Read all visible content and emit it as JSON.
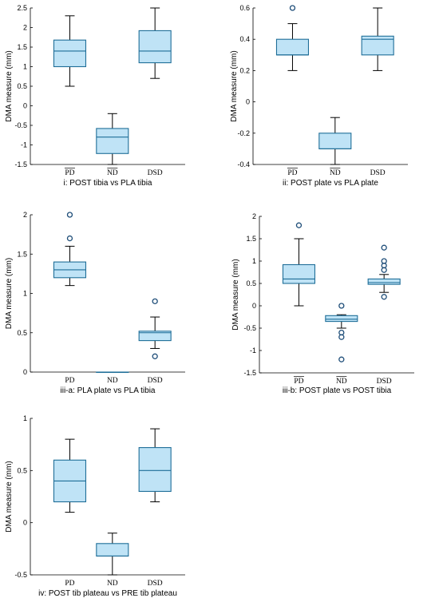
{
  "chart_data": [
    {
      "type": "box",
      "title": "",
      "caption": "i: POST tibia vs PLA tibia",
      "ylabel": "DMA measure (mm)",
      "ylim": [
        -1.5,
        2.5
      ],
      "yticks": [
        -1.5,
        -1,
        -0.5,
        0,
        0.5,
        1,
        1.5,
        2,
        2.5
      ],
      "ytick_labels": [
        "-1.5",
        "-1",
        "-0.5",
        "0",
        "0.5",
        "1",
        "1.5",
        "2",
        "2.5"
      ],
      "categories": [
        "PD",
        "ND",
        "DSD"
      ],
      "overlined": [
        true,
        true,
        false
      ],
      "boxes": [
        {
          "min": 0.5,
          "q1": 1.0,
          "median": 1.4,
          "q3": 1.68,
          "max": 2.3,
          "outliers": []
        },
        {
          "min": -1.5,
          "q1": -1.22,
          "median": -0.8,
          "q3": -0.58,
          "max": -0.2,
          "outliers": []
        },
        {
          "min": 0.7,
          "q1": 1.1,
          "median": 1.4,
          "q3": 1.92,
          "max": 2.5,
          "outliers": []
        }
      ]
    },
    {
      "type": "box",
      "title": "",
      "caption": "ii: POST plate vs PLA plate",
      "ylabel": "DMA measure (mm)",
      "ylim": [
        -0.4,
        0.6
      ],
      "yticks": [
        -0.4,
        -0.2,
        0,
        0.2,
        0.4,
        0.6
      ],
      "ytick_labels": [
        "-0.4",
        "-0.2",
        "0",
        "0.2",
        "0.4",
        "0.6"
      ],
      "categories": [
        "PD",
        "ND",
        "DSD"
      ],
      "overlined": [
        true,
        true,
        false
      ],
      "boxes": [
        {
          "min": 0.2,
          "q1": 0.3,
          "median": 0.3,
          "q3": 0.4,
          "max": 0.5,
          "outliers": [
            0.6
          ]
        },
        {
          "min": -0.4,
          "q1": -0.3,
          "median": -0.3,
          "q3": -0.2,
          "max": -0.1,
          "outliers": []
        },
        {
          "min": 0.2,
          "q1": 0.3,
          "median": 0.4,
          "q3": 0.42,
          "max": 0.6,
          "outliers": []
        }
      ]
    },
    {
      "type": "box",
      "title": "",
      "caption": "iii-a: PLA plate vs PLA tibia",
      "ylabel": "DMA measure (mm)",
      "ylim": [
        0,
        2
      ],
      "yticks": [
        0,
        0.5,
        1,
        1.5,
        2
      ],
      "ytick_labels": [
        "0",
        "0.5",
        "1",
        "1.5",
        "2"
      ],
      "categories": [
        "PD",
        "ND",
        "DSD"
      ],
      "overlined": [
        false,
        false,
        false
      ],
      "boxes": [
        {
          "min": 1.1,
          "q1": 1.2,
          "median": 1.3,
          "q3": 1.4,
          "max": 1.6,
          "outliers": [
            1.7,
            2.0
          ]
        },
        {
          "min": 0,
          "q1": 0,
          "median": 0,
          "q3": 0,
          "max": 0,
          "outliers": []
        },
        {
          "min": 0.3,
          "q1": 0.4,
          "median": 0.5,
          "q3": 0.52,
          "max": 0.7,
          "outliers": [
            0.2,
            0.9
          ]
        }
      ]
    },
    {
      "type": "box",
      "title": "",
      "caption": "iii-b: POST plate vs POST tibia",
      "ylabel": "DMA measure (mm)",
      "ylim": [
        -1.5,
        2
      ],
      "yticks": [
        -1.5,
        -1,
        -0.5,
        0,
        0.5,
        1,
        1.5,
        2
      ],
      "ytick_labels": [
        "-1.5",
        "-1",
        "-0.5",
        "0",
        "0.5",
        "1",
        "1.5",
        "2"
      ],
      "categories": [
        "PD",
        "ND",
        "DSD"
      ],
      "overlined": [
        true,
        true,
        false
      ],
      "boxes": [
        {
          "min": 0,
          "q1": 0.5,
          "median": 0.6,
          "q3": 0.92,
          "max": 1.5,
          "outliers": [
            1.8
          ]
        },
        {
          "min": -0.5,
          "q1": -0.35,
          "median": -0.3,
          "q3": -0.22,
          "max": -0.2,
          "outliers": [
            0,
            -0.6,
            -0.7,
            -1.2
          ]
        },
        {
          "min": 0.3,
          "q1": 0.48,
          "median": 0.52,
          "q3": 0.6,
          "max": 0.7,
          "outliers": [
            0.2,
            0.8,
            0.9,
            1.0,
            1.3
          ]
        }
      ]
    },
    {
      "type": "box",
      "title": "",
      "caption": "iv: POST tib plateau vs PRE tib plateau",
      "ylabel": "DMA measure (mm)",
      "ylim": [
        -0.5,
        1
      ],
      "yticks": [
        -0.5,
        0,
        0.5,
        1
      ],
      "ytick_labels": [
        "-0.5",
        "0",
        "0.5",
        "1"
      ],
      "categories": [
        "PD",
        "ND",
        "DSD"
      ],
      "overlined": [
        false,
        false,
        false
      ],
      "boxes": [
        {
          "min": 0.1,
          "q1": 0.2,
          "median": 0.4,
          "q3": 0.6,
          "max": 0.8,
          "outliers": []
        },
        {
          "min": -0.5,
          "q1": -0.32,
          "median": -0.32,
          "q3": -0.2,
          "max": -0.1,
          "outliers": []
        },
        {
          "min": 0.2,
          "q1": 0.3,
          "median": 0.5,
          "q3": 0.72,
          "max": 0.9,
          "outliers": []
        }
      ]
    }
  ]
}
